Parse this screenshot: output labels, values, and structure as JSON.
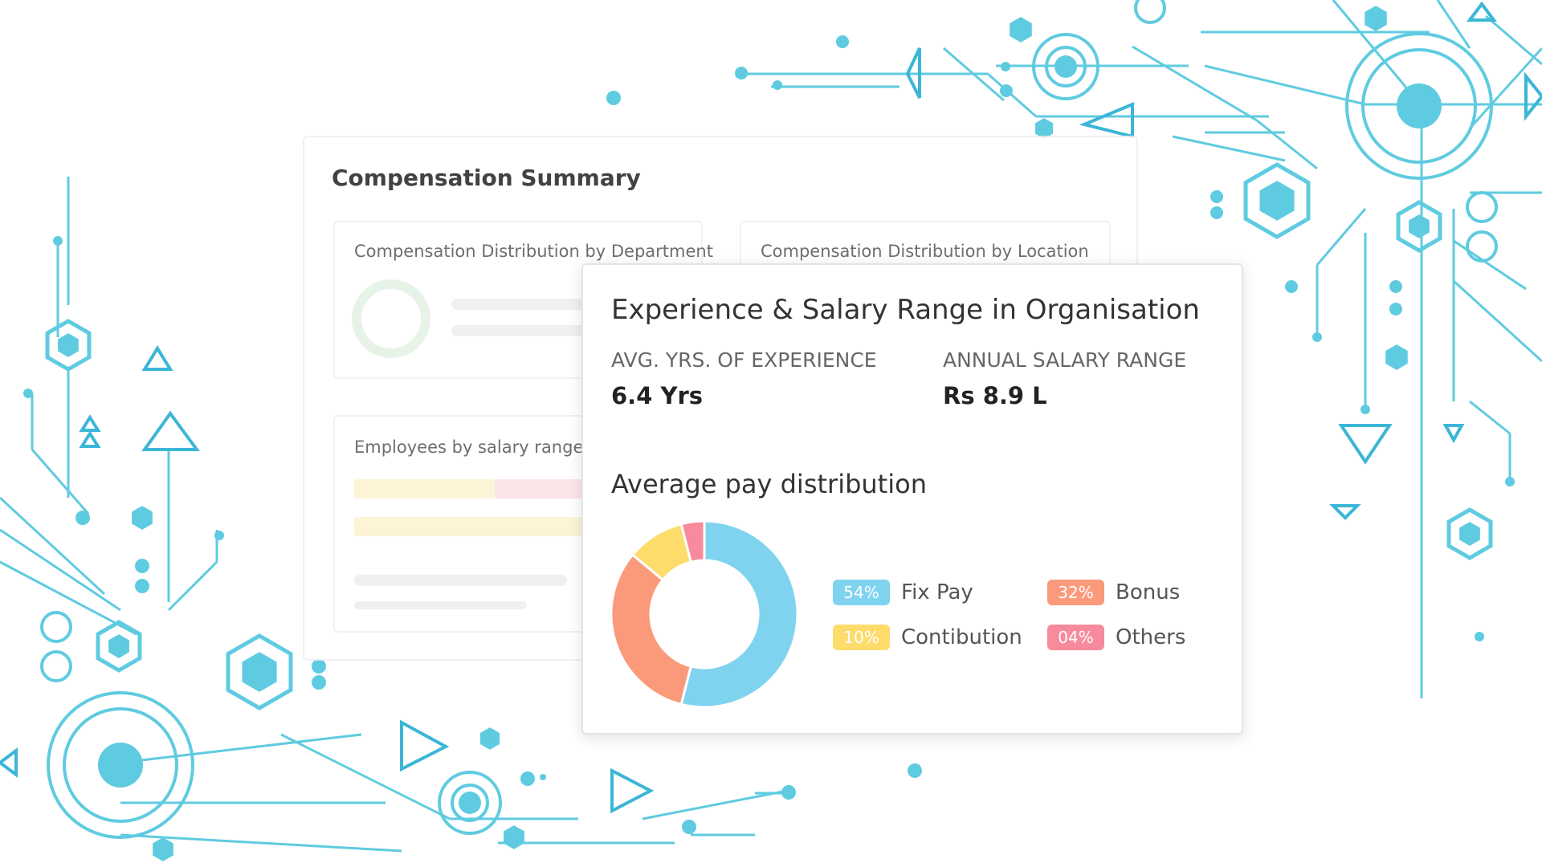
{
  "summary": {
    "title": "Compensation Summary",
    "cards": [
      "Compensation Distribution by Department",
      "Compensation Distribution by Location",
      "Employees by salary range"
    ]
  },
  "popup": {
    "title": "Experience & Salary Range in Organisation",
    "stats": [
      {
        "label": "AVG. YRS. OF EXPERIENCE",
        "value": "6.4 Yrs"
      },
      {
        "label": "ANNUAL SALARY RANGE",
        "value": "Rs 8.9 L"
      }
    ]
  },
  "chart_data": {
    "type": "donut",
    "title": "Average pay distribution",
    "categories": [
      "Fix Pay",
      "Bonus",
      "Contibution",
      "Others"
    ],
    "values": [
      54,
      32,
      10,
      4
    ],
    "value_labels": [
      "54%",
      "32%",
      "10%",
      "04%"
    ],
    "colors": [
      "#7fd3ef",
      "#fb9a7b",
      "#fddc6c",
      "#f78a9b"
    ]
  }
}
